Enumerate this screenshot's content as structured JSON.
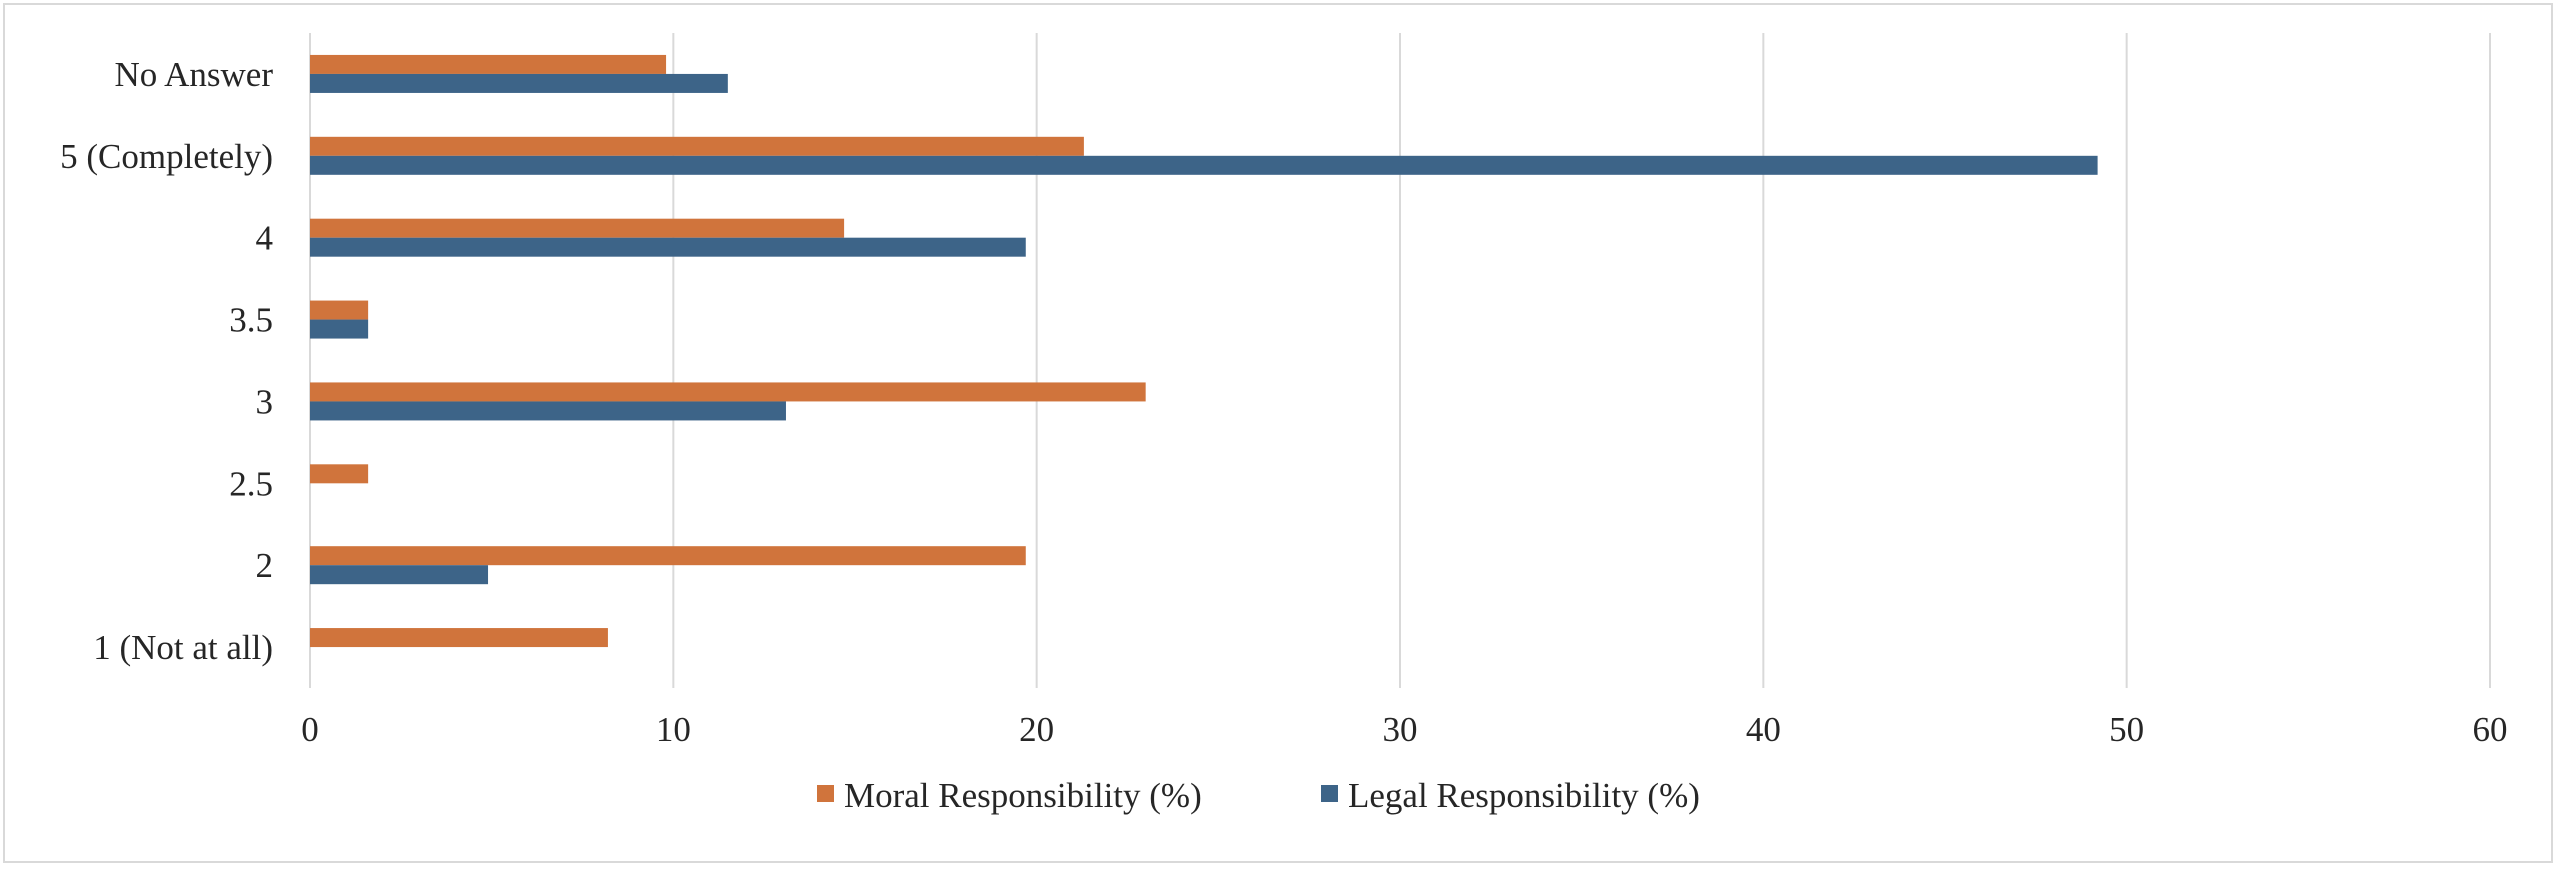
{
  "chart_data": {
    "type": "bar",
    "orientation": "horizontal",
    "title": "",
    "xlabel": "",
    "ylabel": "",
    "categories": [
      "No Answer",
      "5 (Completely)",
      "4",
      "3.5",
      "3",
      "2.5",
      "2",
      "1 (Not at all)"
    ],
    "series": [
      {
        "name": "Moral Responsibility (%)",
        "color": "#d0743c",
        "values": [
          9.8,
          21.3,
          14.7,
          1.6,
          23.0,
          1.6,
          19.7,
          8.2
        ]
      },
      {
        "name": "Legal Responsibility (%)",
        "color": "#3d6488",
        "values": [
          11.5,
          49.2,
          19.7,
          1.6,
          13.1,
          0,
          4.9,
          0
        ]
      }
    ],
    "xlim": [
      0,
      60
    ],
    "xticks": [
      0,
      10,
      20,
      30,
      40,
      50,
      60
    ],
    "grid": true,
    "legend_position": "bottom"
  }
}
